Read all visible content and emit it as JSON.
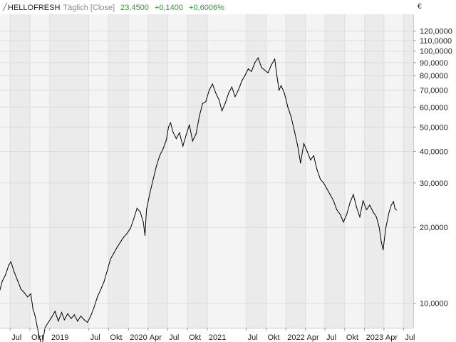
{
  "header": {
    "symbol": "HELLOFRESH",
    "interval": "Täglich [Close]",
    "last": "23,4500",
    "change": "+0,1400",
    "change_pct": "+0,6006%",
    "positive_color": "#2e9a2e"
  },
  "currency": "€",
  "chart_data": {
    "type": "line",
    "title": "",
    "xlabel": "",
    "ylabel": "",
    "y_scale": "log",
    "grid": true,
    "x_tick_labels": [
      "Jul",
      "Okt",
      "2019",
      "Jul",
      "Okt",
      "2020",
      "Apr",
      "Jul",
      "Okt",
      "2021",
      "Jul",
      "Okt",
      "2022",
      "Apr",
      "Jul",
      "Okt",
      "2023",
      "Apr",
      "Jul"
    ],
    "y_tick_labels": [
      "10,0000",
      "20,0000",
      "30,0000",
      "40,0000",
      "50,0000",
      "60,0000",
      "70,0000",
      "80,0000",
      "90,0000",
      "100,0000",
      "110,0000",
      "120,0000"
    ],
    "ylim": [
      8.0,
      140.0
    ],
    "x_range": [
      "2018-05-15",
      "2023-08-15"
    ],
    "series": [
      {
        "values": [
          [
            "2018-05-15",
            11.3
          ],
          [
            "2018-05-25",
            12.2
          ],
          [
            "2018-06-10",
            13.0
          ],
          [
            "2018-06-25",
            14.2
          ],
          [
            "2018-07-05",
            14.6
          ],
          [
            "2018-07-20",
            13.3
          ],
          [
            "2018-08-05",
            12.3
          ],
          [
            "2018-08-20",
            11.4
          ],
          [
            "2018-09-05",
            11.0
          ],
          [
            "2018-09-20",
            10.6
          ],
          [
            "2018-10-05",
            10.9
          ],
          [
            "2018-10-15",
            9.5
          ],
          [
            "2018-10-25",
            8.9
          ],
          [
            "2018-11-10",
            7.6
          ],
          [
            "2018-11-25",
            6.7
          ],
          [
            "2018-12-10",
            8.0
          ],
          [
            "2018-12-25",
            8.4
          ],
          [
            "2019-01-10",
            8.8
          ],
          [
            "2019-01-25",
            9.3
          ],
          [
            "2019-02-10",
            8.5
          ],
          [
            "2019-02-25",
            9.2
          ],
          [
            "2019-03-10",
            8.6
          ],
          [
            "2019-03-25",
            9.1
          ],
          [
            "2019-04-10",
            8.7
          ],
          [
            "2019-04-25",
            9.0
          ],
          [
            "2019-05-10",
            8.5
          ],
          [
            "2019-05-25",
            8.9
          ],
          [
            "2019-06-10",
            8.6
          ],
          [
            "2019-06-25",
            8.4
          ],
          [
            "2019-07-10",
            8.9
          ],
          [
            "2019-07-25",
            9.6
          ],
          [
            "2019-08-10",
            10.6
          ],
          [
            "2019-08-25",
            11.3
          ],
          [
            "2019-09-10",
            12.2
          ],
          [
            "2019-09-25",
            13.5
          ],
          [
            "2019-10-10",
            15.0
          ],
          [
            "2019-10-25",
            15.8
          ],
          [
            "2019-11-10",
            16.7
          ],
          [
            "2019-11-25",
            17.5
          ],
          [
            "2019-12-10",
            18.3
          ],
          [
            "2019-12-25",
            18.9
          ],
          [
            "2020-01-10",
            19.8
          ],
          [
            "2020-01-25",
            21.5
          ],
          [
            "2020-02-10",
            23.8
          ],
          [
            "2020-02-25",
            23.0
          ],
          [
            "2020-03-10",
            21.0
          ],
          [
            "2020-03-18",
            18.6
          ],
          [
            "2020-03-25",
            23.5
          ],
          [
            "2020-04-10",
            27.5
          ],
          [
            "2020-04-25",
            31.0
          ],
          [
            "2020-05-10",
            35.0
          ],
          [
            "2020-05-25",
            38.5
          ],
          [
            "2020-06-10",
            41.0
          ],
          [
            "2020-06-25",
            44.5
          ],
          [
            "2020-07-05",
            50.0
          ],
          [
            "2020-07-15",
            52.0
          ],
          [
            "2020-07-25",
            48.0
          ],
          [
            "2020-08-10",
            45.0
          ],
          [
            "2020-08-25",
            47.5
          ],
          [
            "2020-09-10",
            42.0
          ],
          [
            "2020-09-25",
            46.5
          ],
          [
            "2020-10-10",
            51.0
          ],
          [
            "2020-10-25",
            44.0
          ],
          [
            "2020-11-10",
            47.0
          ],
          [
            "2020-11-25",
            55.0
          ],
          [
            "2020-12-10",
            62.0
          ],
          [
            "2020-12-25",
            63.0
          ],
          [
            "2021-01-10",
            70.0
          ],
          [
            "2021-01-25",
            74.0
          ],
          [
            "2021-02-10",
            68.0
          ],
          [
            "2021-02-25",
            64.0
          ],
          [
            "2021-03-10",
            58.0
          ],
          [
            "2021-03-25",
            62.0
          ],
          [
            "2021-04-10",
            68.0
          ],
          [
            "2021-04-25",
            72.0
          ],
          [
            "2021-05-10",
            66.0
          ],
          [
            "2021-05-25",
            70.0
          ],
          [
            "2021-06-10",
            76.0
          ],
          [
            "2021-06-25",
            80.0
          ],
          [
            "2021-07-10",
            85.0
          ],
          [
            "2021-07-25",
            83.0
          ],
          [
            "2021-08-10",
            90.0
          ],
          [
            "2021-08-25",
            94.0
          ],
          [
            "2021-09-10",
            86.0
          ],
          [
            "2021-09-25",
            84.0
          ],
          [
            "2021-10-10",
            82.0
          ],
          [
            "2021-10-25",
            88.0
          ],
          [
            "2021-11-10",
            93.0
          ],
          [
            "2021-11-20",
            80.0
          ],
          [
            "2021-11-30",
            70.0
          ],
          [
            "2021-12-10",
            73.0
          ],
          [
            "2021-12-25",
            68.0
          ],
          [
            "2022-01-10",
            60.0
          ],
          [
            "2022-01-25",
            55.0
          ],
          [
            "2022-02-10",
            48.0
          ],
          [
            "2022-02-25",
            42.0
          ],
          [
            "2022-03-10",
            36.0
          ],
          [
            "2022-03-25",
            43.0
          ],
          [
            "2022-04-10",
            40.0
          ],
          [
            "2022-04-25",
            37.0
          ],
          [
            "2022-05-10",
            38.5
          ],
          [
            "2022-05-25",
            34.0
          ],
          [
            "2022-06-10",
            31.0
          ],
          [
            "2022-06-25",
            30.0
          ],
          [
            "2022-07-10",
            28.5
          ],
          [
            "2022-07-25",
            27.0
          ],
          [
            "2022-08-10",
            25.5
          ],
          [
            "2022-08-25",
            23.5
          ],
          [
            "2022-09-10",
            22.5
          ],
          [
            "2022-09-25",
            21.0
          ],
          [
            "2022-10-10",
            22.5
          ],
          [
            "2022-10-25",
            25.0
          ],
          [
            "2022-11-10",
            27.0
          ],
          [
            "2022-11-25",
            24.0
          ],
          [
            "2022-12-10",
            22.0
          ],
          [
            "2022-12-25",
            25.5
          ],
          [
            "2023-01-10",
            23.5
          ],
          [
            "2023-01-25",
            24.5
          ],
          [
            "2023-02-10",
            23.0
          ],
          [
            "2023-02-25",
            22.0
          ],
          [
            "2023-03-10",
            20.0
          ],
          [
            "2023-03-20",
            17.5
          ],
          [
            "2023-03-28",
            16.3
          ],
          [
            "2023-04-10",
            20.0
          ],
          [
            "2023-04-25",
            23.0
          ],
          [
            "2023-05-05",
            24.5
          ],
          [
            "2023-05-15",
            25.3
          ],
          [
            "2023-05-22",
            23.8
          ],
          [
            "2023-05-29",
            23.45
          ]
        ]
      }
    ]
  }
}
